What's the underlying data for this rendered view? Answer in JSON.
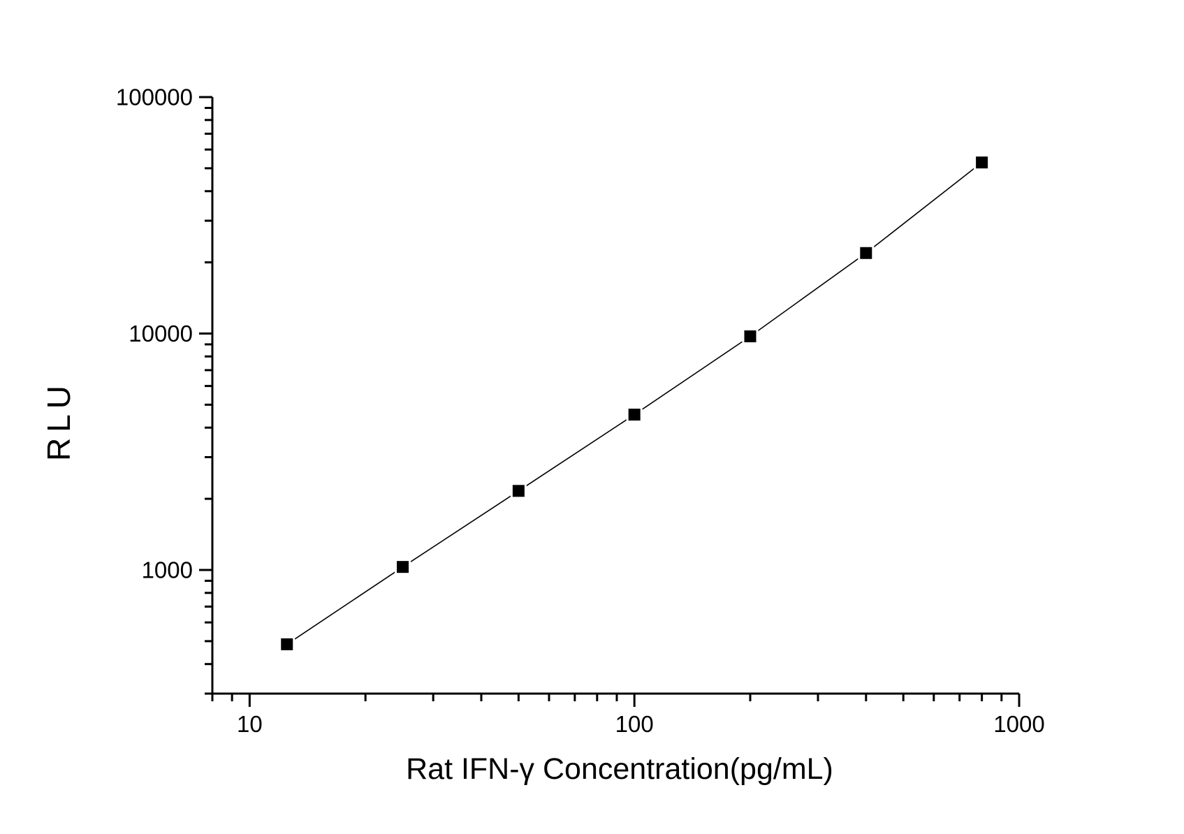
{
  "chart_data": {
    "type": "line",
    "subtype": "scatter-line-log-log",
    "title": "",
    "xlabel": "Rat  IFN-γ  Concentration(pg/mL)",
    "ylabel": "RLU",
    "x_scale": "log",
    "y_scale": "log",
    "xlim": [
      8,
      1000
    ],
    "ylim": [
      300,
      100000
    ],
    "x_major_ticks": [
      10,
      100,
      1000
    ],
    "x_tick_labels": [
      "10",
      "100",
      "1000"
    ],
    "y_major_ticks": [
      1000,
      10000,
      100000
    ],
    "y_tick_labels": [
      "1000",
      "10000",
      "100000"
    ],
    "grid": false,
    "legend": false,
    "background_color": "#ffffff",
    "axis_color": "#000000",
    "series": [
      {
        "name": "standard-curve",
        "marker": "filled-square",
        "marker_color": "#000000",
        "line_color": "#000000",
        "x": [
          12.5,
          25,
          50,
          100,
          200,
          400,
          800
        ],
        "y": [
          485,
          1030,
          2160,
          4540,
          9730,
          21900,
          52900
        ]
      }
    ]
  }
}
